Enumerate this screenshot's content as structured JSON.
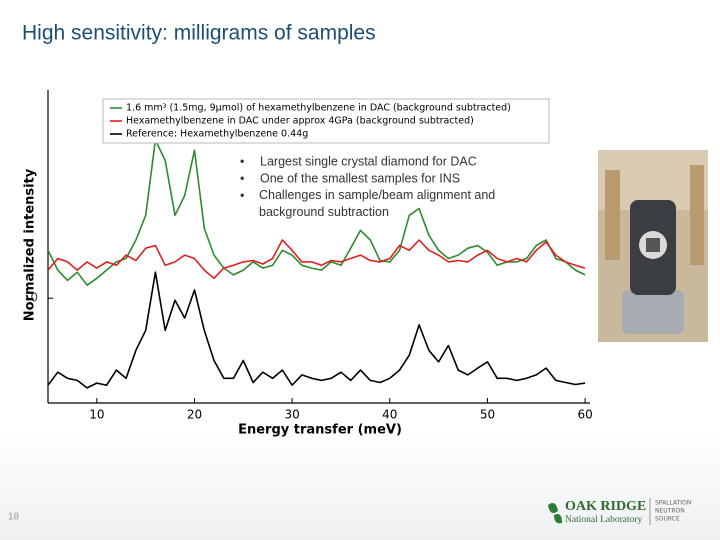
{
  "title": "High sensitivity: milligrams of samples",
  "bullets": [
    "Largest single crystal diamond for DAC",
    "One of the smallest samples for INS",
    "Challenges in sample/beam alignment and background subtraction"
  ],
  "page_number": "18",
  "logo": {
    "name": "OAK RIDGE",
    "sub": "National Laboratory",
    "division": [
      "SPALLATION",
      "NEUTRON",
      "SOURCE"
    ]
  },
  "chart_data": {
    "type": "line",
    "xlabel": "Energy transfer (meV)",
    "ylabel": "Normalized intensity",
    "xlim": [
      5,
      60.5
    ],
    "xticks": [
      10,
      20,
      30,
      40,
      50,
      60
    ],
    "ylim": [
      -1.53,
      3.04
    ],
    "yticks": [
      0
    ],
    "x": [
      5,
      6,
      7,
      8,
      9,
      10,
      11,
      12,
      13,
      14,
      15,
      16,
      17,
      18,
      19,
      20,
      21,
      22,
      23,
      24,
      25,
      26,
      27,
      28,
      29,
      30,
      31,
      32,
      33,
      34,
      35,
      36,
      37,
      38,
      39,
      40,
      41,
      42,
      43,
      44,
      45,
      46,
      47,
      48,
      49,
      50,
      51,
      52,
      53,
      54,
      55,
      56,
      57,
      58,
      59,
      60
    ],
    "series": [
      {
        "name": "1.6 mm³ (1.5mg, 9μmol) of hexamethylbenzene in DAC (background subtracted)",
        "color": "#2e8b2e",
        "values": [
          0.7,
          0.41,
          0.26,
          0.38,
          0.19,
          0.29,
          0.41,
          0.53,
          0.58,
          0.85,
          1.21,
          2.31,
          2.01,
          1.21,
          1.5,
          2.16,
          1.02,
          0.63,
          0.44,
          0.34,
          0.41,
          0.53,
          0.44,
          0.48,
          0.7,
          0.63,
          0.48,
          0.44,
          0.41,
          0.53,
          0.48,
          0.73,
          0.99,
          0.85,
          0.55,
          0.53,
          0.7,
          1.21,
          1.31,
          0.92,
          0.7,
          0.58,
          0.63,
          0.73,
          0.77,
          0.67,
          0.48,
          0.53,
          0.53,
          0.58,
          0.77,
          0.85,
          0.58,
          0.53,
          0.41,
          0.34
        ]
      },
      {
        "name": "Hexamethylbenzene in DAC under approx 4GPa (background subtracted)",
        "color": "#e02020",
        "values": [
          0.41,
          0.58,
          0.53,
          0.41,
          0.53,
          0.44,
          0.53,
          0.48,
          0.63,
          0.55,
          0.73,
          0.77,
          0.48,
          0.53,
          0.63,
          0.58,
          0.41,
          0.29,
          0.44,
          0.48,
          0.53,
          0.55,
          0.5,
          0.58,
          0.85,
          0.7,
          0.53,
          0.53,
          0.48,
          0.55,
          0.53,
          0.58,
          0.63,
          0.55,
          0.53,
          0.58,
          0.77,
          0.7,
          0.85,
          0.7,
          0.63,
          0.53,
          0.55,
          0.53,
          0.63,
          0.7,
          0.58,
          0.53,
          0.58,
          0.53,
          0.7,
          0.82,
          0.63,
          0.53,
          0.48,
          0.44
        ]
      },
      {
        "name": "Reference: Hexamethylbenzene 0.44g",
        "color": "#000000",
        "values": [
          -1.27,
          -1.08,
          -1.17,
          -1.2,
          -1.31,
          -1.24,
          -1.27,
          -1.05,
          -1.17,
          -0.76,
          -0.47,
          0.38,
          -0.47,
          -0.03,
          -0.29,
          0.12,
          -0.47,
          -0.91,
          -1.17,
          -1.17,
          -0.91,
          -1.23,
          -1.08,
          -1.17,
          -1.05,
          -1.27,
          -1.12,
          -1.17,
          -1.2,
          -1.17,
          -1.08,
          -1.2,
          -1.05,
          -1.2,
          -1.23,
          -1.17,
          -1.05,
          -0.83,
          -0.39,
          -0.76,
          -0.93,
          -0.69,
          -1.05,
          -1.12,
          -1.02,
          -0.93,
          -1.17,
          -1.17,
          -1.2,
          -1.17,
          -1.12,
          -1.02,
          -1.2,
          -1.23,
          -1.26,
          -1.24
        ]
      }
    ]
  }
}
